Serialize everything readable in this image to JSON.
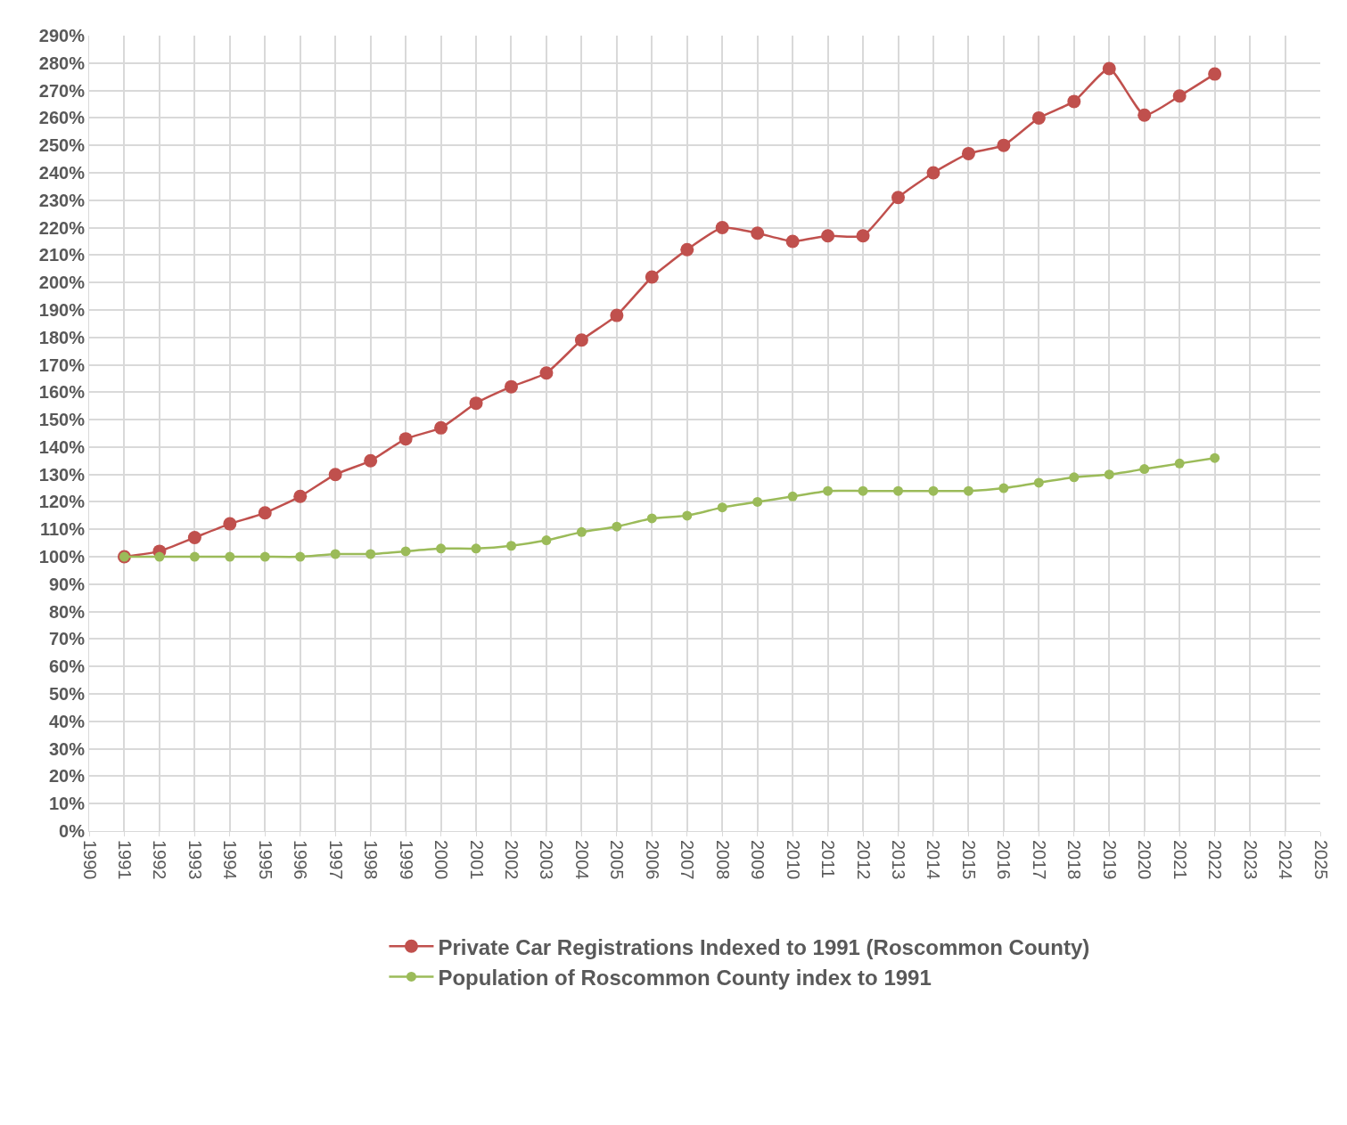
{
  "chart_data": {
    "type": "line",
    "x": [
      1991,
      1992,
      1993,
      1994,
      1995,
      1996,
      1997,
      1998,
      1999,
      2000,
      2001,
      2002,
      2003,
      2004,
      2005,
      2006,
      2007,
      2008,
      2009,
      2010,
      2011,
      2012,
      2013,
      2014,
      2015,
      2016,
      2017,
      2018,
      2019,
      2020,
      2021,
      2022
    ],
    "series": [
      {
        "name": "Private Car Registrations Indexed to 1991 (Roscommon County)",
        "color": "#c0504d",
        "values": [
          100,
          102,
          107,
          112,
          116,
          122,
          130,
          135,
          143,
          147,
          156,
          162,
          167,
          179,
          188,
          202,
          212,
          220,
          218,
          215,
          217,
          217,
          231,
          240,
          247,
          250,
          260,
          266,
          278,
          261,
          268,
          276
        ]
      },
      {
        "name": "Population of Roscommon County index to 1991",
        "color": "#9bbb59",
        "values": [
          100,
          100,
          100,
          100,
          100,
          100,
          101,
          101,
          102,
          103,
          103,
          104,
          106,
          109,
          111,
          114,
          115,
          118,
          120,
          122,
          124,
          124,
          124,
          124,
          124,
          125,
          127,
          129,
          130,
          132,
          134,
          136
        ]
      }
    ],
    "xlim": [
      1990,
      2025
    ],
    "xticks": [
      1990,
      1991,
      1992,
      1993,
      1994,
      1995,
      1996,
      1997,
      1998,
      1999,
      2000,
      2001,
      2002,
      2003,
      2004,
      2005,
      2006,
      2007,
      2008,
      2009,
      2010,
      2011,
      2012,
      2013,
      2014,
      2015,
      2016,
      2017,
      2018,
      2019,
      2020,
      2021,
      2022,
      2023,
      2024,
      2025
    ],
    "ylim": [
      0,
      290
    ],
    "yticks": [
      {
        "value": 0,
        "label": "0%"
      },
      {
        "value": 10,
        "label": "10%"
      },
      {
        "value": 20,
        "label": "20%"
      },
      {
        "value": 30,
        "label": "30%"
      },
      {
        "value": 40,
        "label": "40%"
      },
      {
        "value": 50,
        "label": "50%"
      },
      {
        "value": 60,
        "label": "60%"
      },
      {
        "value": 70,
        "label": "70%"
      },
      {
        "value": 80,
        "label": "80%"
      },
      {
        "value": 90,
        "label": "90%"
      },
      {
        "value": 100,
        "label": "100%"
      },
      {
        "value": 110,
        "label": "110%"
      },
      {
        "value": 120,
        "label": "120%"
      },
      {
        "value": 130,
        "label": "130%"
      },
      {
        "value": 140,
        "label": "140%"
      },
      {
        "value": 150,
        "label": "150%"
      },
      {
        "value": 160,
        "label": "160%"
      },
      {
        "value": 170,
        "label": "170%"
      },
      {
        "value": 180,
        "label": "180%"
      },
      {
        "value": 190,
        "label": "190%"
      },
      {
        "value": 200,
        "label": "200%"
      },
      {
        "value": 210,
        "label": "210%"
      },
      {
        "value": 220,
        "label": "220%"
      },
      {
        "value": 230,
        "label": "230%"
      },
      {
        "value": 240,
        "label": "240%"
      },
      {
        "value": 250,
        "label": "250%"
      },
      {
        "value": 260,
        "label": "260%"
      },
      {
        "value": 270,
        "label": "270%"
      },
      {
        "value": 280,
        "label": "280%"
      },
      {
        "value": 290,
        "label": "290%"
      }
    ],
    "grid": true,
    "legend": "bottom",
    "marker": "circle",
    "line_style": "solid"
  }
}
